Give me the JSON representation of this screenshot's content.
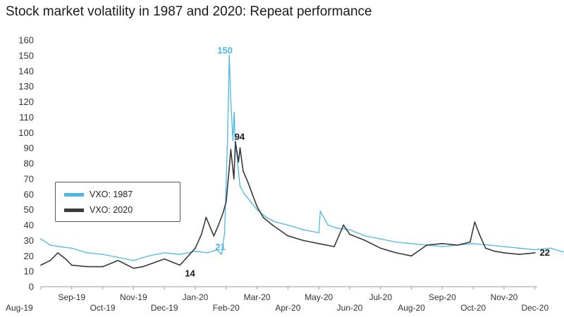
{
  "chart_data": {
    "type": "line",
    "title": "Stock market volatility in 1987 and 2020: Repeat performance",
    "xlabel": "",
    "ylabel": "",
    "ylim": [
      0,
      160
    ],
    "yticks": [
      0,
      10,
      20,
      30,
      40,
      50,
      60,
      70,
      80,
      90,
      100,
      110,
      120,
      130,
      140,
      150,
      160
    ],
    "x_ticks_upper": [
      "Sep-19",
      "Nov-19",
      "Jan-20",
      "Mar-20",
      "May-20",
      "Jul-20",
      "Sep-20",
      "Nov-20"
    ],
    "x_ticks_lower": [
      "Aug-19",
      "Oct-19",
      "Dec-19",
      "Feb-20",
      "Apr-20",
      "Jun-20",
      "Aug-20",
      "Oct-20",
      "Dec-20"
    ],
    "x_months": [
      "Aug-19",
      "Sep-19",
      "Oct-19",
      "Nov-19",
      "Dec-19",
      "Jan-20",
      "Feb-20",
      "Mar-20",
      "Apr-20",
      "May-20",
      "Jun-20",
      "Jul-20",
      "Aug-20",
      "Sep-20",
      "Oct-20",
      "Nov-20",
      "Dec-20"
    ],
    "series": [
      {
        "name": "VXO: 1987",
        "color": "#4db8e8",
        "x": [
          0,
          0.3,
          0.6,
          1,
          1.5,
          2,
          2.5,
          3,
          3.5,
          4,
          4.5,
          5,
          5.4,
          5.7,
          5.85,
          5.95,
          6.05,
          6.1,
          6.15,
          6.22,
          6.26,
          6.3,
          6.35,
          6.45,
          6.6,
          6.8,
          7,
          7.3,
          7.6,
          8,
          8.5,
          9,
          9.05,
          9.3,
          9.6,
          10,
          10.5,
          11,
          11.5,
          12,
          12.5,
          13,
          13.5,
          14,
          14.5,
          15,
          15.5,
          16,
          16.5,
          17.2
        ],
        "y": [
          31,
          27,
          26,
          25,
          22,
          21,
          19,
          17,
          20,
          22,
          21,
          23,
          22,
          24,
          21,
          35,
          100,
          150,
          120,
          95,
          113,
          90,
          85,
          65,
          60,
          55,
          50,
          45,
          42,
          40,
          37,
          35,
          49,
          40,
          38,
          37,
          33,
          31,
          29,
          28,
          27,
          26,
          27,
          28,
          27,
          26,
          25,
          24,
          25,
          21
        ]
      },
      {
        "name": "VXO: 2020",
        "color": "#3a3a3a",
        "x": [
          0,
          0.3,
          0.55,
          0.8,
          1,
          1.5,
          2,
          2.5,
          2.8,
          3,
          3.3,
          4,
          4.5,
          5,
          5.2,
          5.35,
          5.6,
          5.75,
          5.9,
          6,
          6.1,
          6.15,
          6.25,
          6.3,
          6.4,
          6.45,
          6.55,
          6.7,
          6.85,
          7,
          7.2,
          7.5,
          8,
          8.5,
          9,
          9.5,
          9.8,
          10,
          10.5,
          11,
          11.5,
          12,
          12.5,
          13,
          13.5,
          13.9,
          14.05,
          14.2,
          14.4,
          14.7,
          15,
          15.5,
          16
        ],
        "y": [
          14,
          17,
          22,
          18,
          14,
          13,
          13,
          17,
          14,
          12,
          13,
          18,
          14,
          25,
          34,
          45,
          33,
          40,
          48,
          55,
          77,
          89,
          70,
          94,
          81,
          90,
          75,
          68,
          60,
          52,
          45,
          40,
          33,
          30,
          28,
          26,
          40,
          34,
          30,
          25,
          22,
          20,
          27,
          28,
          27,
          29,
          42,
          34,
          25,
          23,
          22,
          21,
          22
        ]
      }
    ],
    "annotations": [
      {
        "text": "150",
        "x": 6.1,
        "y": 150,
        "color": "#4db8e8"
      },
      {
        "text": "94",
        "x": 6.3,
        "y": 94,
        "color": "#1a1a1a"
      },
      {
        "text": "21",
        "x": 5.95,
        "y": 21,
        "color": "#4db8e8"
      },
      {
        "text": "14",
        "x": 5.15,
        "y": 14,
        "color": "#1a1a1a"
      },
      {
        "text": "22",
        "x": 16,
        "y": 22,
        "color": "#1a1a1a"
      }
    ],
    "legend_position": "middle-left"
  }
}
